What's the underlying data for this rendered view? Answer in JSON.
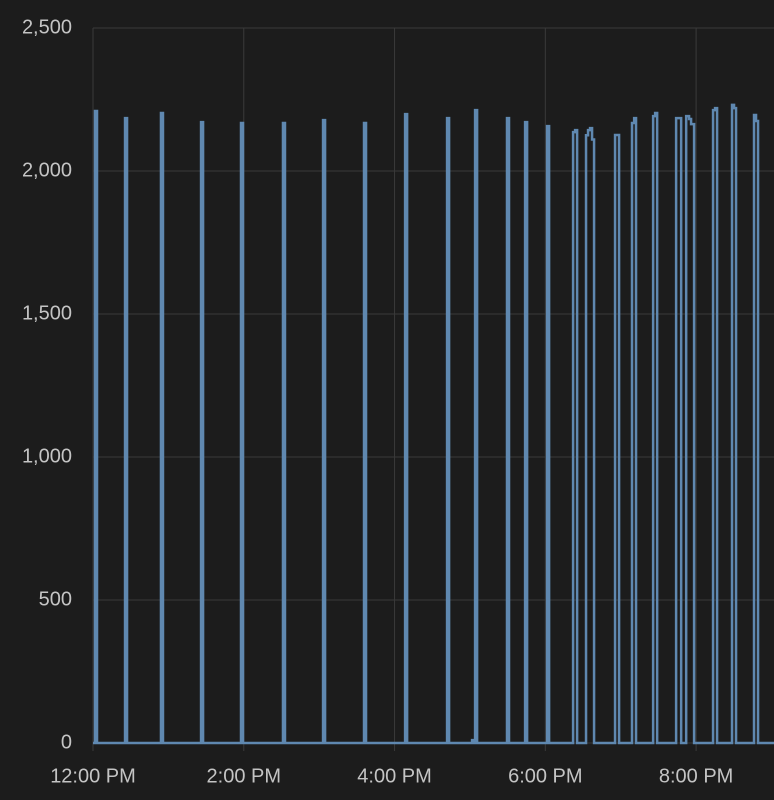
{
  "chart_data": {
    "type": "line",
    "interpolation": "step",
    "color": "#5f88b0",
    "grid": true,
    "x": [
      0,
      1.6,
      3.2,
      25.5,
      27.1,
      54.1,
      55.7,
      86.0,
      87.6,
      117.8,
      119.4,
      151.2,
      152.8,
      183.1,
      184.7,
      215.7,
      217.3,
      248.4,
      250.0,
      281.8,
      283.4,
      301.7,
      303.3,
      304.1,
      305.7,
      329.5,
      331.1,
      343.9,
      345.5,
      361.4,
      363.0,
      382.1,
      383.7,
      385.3,
      392.4,
      394.0,
      395.6,
      397.2,
      398.8,
      415.5,
      418.7,
      429.0,
      430.7,
      432.2,
      445.8,
      447.4,
      449.0,
      464.1,
      468.1,
      472.1,
      474.4,
      476.0,
      478.4,
      493.5,
      495.1,
      496.7,
      508.6,
      510.2,
      511.8,
      526.1,
      527.7,
      529.3,
      542
    ],
    "values": [
      0,
      2210,
      0,
      2185,
      0,
      2203,
      0,
      2171,
      0,
      2168,
      0,
      2168,
      0,
      2178,
      0,
      2168,
      0,
      2199,
      0,
      2185,
      0,
      10,
      0,
      2213,
      0,
      2185,
      0,
      2171,
      0,
      2157,
      0,
      2136,
      2143,
      0,
      2125,
      2143,
      2150,
      2110,
      0,
      2126,
      0,
      2168,
      2185,
      0,
      2192,
      2203,
      0,
      2185,
      0,
      2192,
      2182,
      2164,
      0,
      2213,
      2220,
      0,
      2231,
      2220,
      0,
      2196,
      2175,
      0,
      0
    ],
    "xlim": [
      0,
      542
    ],
    "xticks": [
      {
        "value": 0,
        "label": "12:00 PM"
      },
      {
        "value": 120,
        "label": "2:00 PM"
      },
      {
        "value": 240,
        "label": "4:00 PM"
      },
      {
        "value": 360,
        "label": "6:00 PM"
      },
      {
        "value": 480,
        "label": "8:00 PM"
      }
    ],
    "ylim": [
      0,
      2500
    ],
    "yticks": [
      0,
      {
        "value": 500,
        "label": "500"
      },
      {
        "value": 1000,
        "label": "1,000"
      },
      {
        "value": 1500,
        "label": "1,500"
      },
      {
        "value": 2000,
        "label": "2,000"
      },
      {
        "value": 2500,
        "label": "2,500"
      }
    ]
  }
}
